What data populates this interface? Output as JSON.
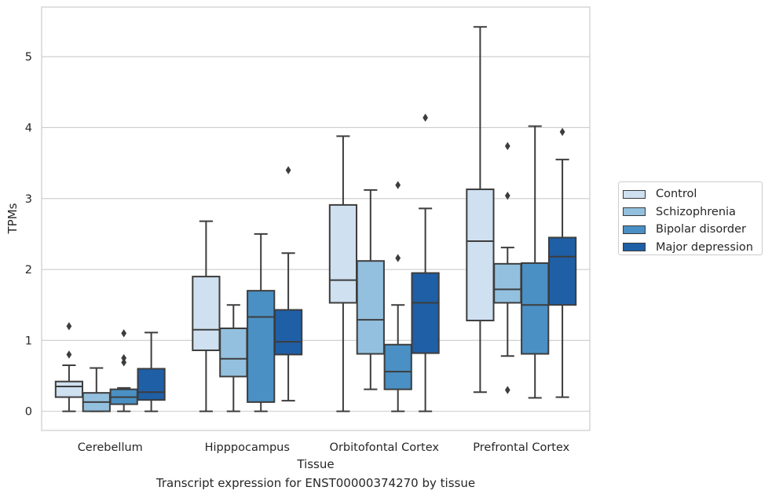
{
  "caption": "Transcript expression for ENST00000374270 by tissue",
  "chart_data": {
    "type": "box",
    "title": "",
    "xlabel": "Tissue",
    "ylabel": "TPMs",
    "ylim": [
      -0.27,
      5.7
    ],
    "yticks": [
      0,
      1,
      2,
      3,
      4,
      5
    ],
    "grid": "horizontal",
    "legend_position": "right",
    "categories": [
      "Cerebellum",
      "Hipppocampus",
      "Orbitofontal Cortex",
      "Prefrontal Cortex"
    ],
    "series": [
      {
        "name": "Control",
        "color": "#cfe0f0",
        "boxes": [
          {
            "whisker_low": 0.0,
            "q1": 0.2,
            "median": 0.35,
            "q3": 0.42,
            "whisker_high": 0.65,
            "outliers": [
              0.8,
              1.2
            ]
          },
          {
            "whisker_low": 0.0,
            "q1": 0.86,
            "median": 1.15,
            "q3": 1.9,
            "whisker_high": 2.68,
            "outliers": []
          },
          {
            "whisker_low": 0.0,
            "q1": 1.53,
            "median": 1.85,
            "q3": 2.91,
            "whisker_high": 3.88,
            "outliers": []
          },
          {
            "whisker_low": 0.27,
            "q1": 1.28,
            "median": 2.4,
            "q3": 3.13,
            "whisker_high": 5.42,
            "outliers": []
          }
        ]
      },
      {
        "name": "Schizophrenia",
        "color": "#93c0de",
        "boxes": [
          {
            "whisker_low": 0.0,
            "q1": 0.0,
            "median": 0.13,
            "q3": 0.26,
            "whisker_high": 0.61,
            "outliers": []
          },
          {
            "whisker_low": 0.0,
            "q1": 0.49,
            "median": 0.74,
            "q3": 1.17,
            "whisker_high": 1.5,
            "outliers": []
          },
          {
            "whisker_low": 0.31,
            "q1": 0.81,
            "median": 1.29,
            "q3": 2.12,
            "whisker_high": 3.12,
            "outliers": []
          },
          {
            "whisker_low": 0.78,
            "q1": 1.53,
            "median": 1.72,
            "q3": 2.08,
            "whisker_high": 2.31,
            "outliers": [
              0.3,
              3.04,
              3.74
            ]
          }
        ]
      },
      {
        "name": "Bipolar disorder",
        "color": "#4a90c4",
        "boxes": [
          {
            "whisker_low": 0.0,
            "q1": 0.1,
            "median": 0.2,
            "q3": 0.31,
            "whisker_high": 0.33,
            "outliers": [
              0.69,
              0.75,
              1.1
            ]
          },
          {
            "whisker_low": 0.0,
            "q1": 0.13,
            "median": 1.33,
            "q3": 1.7,
            "whisker_high": 2.5,
            "outliers": []
          },
          {
            "whisker_low": 0.0,
            "q1": 0.31,
            "median": 0.56,
            "q3": 0.94,
            "whisker_high": 1.5,
            "outliers": [
              2.16,
              3.19
            ]
          },
          {
            "whisker_low": 0.19,
            "q1": 0.81,
            "median": 1.5,
            "q3": 2.09,
            "whisker_high": 4.02,
            "outliers": []
          }
        ]
      },
      {
        "name": "Major depression",
        "color": "#1f5fa6",
        "boxes": [
          {
            "whisker_low": 0.0,
            "q1": 0.16,
            "median": 0.27,
            "q3": 0.6,
            "whisker_high": 1.11,
            "outliers": []
          },
          {
            "whisker_low": 0.15,
            "q1": 0.8,
            "median": 0.98,
            "q3": 1.43,
            "whisker_high": 2.23,
            "outliers": [
              3.4
            ]
          },
          {
            "whisker_low": 0.0,
            "q1": 0.82,
            "median": 1.53,
            "q3": 1.95,
            "whisker_high": 2.86,
            "outliers": [
              4.14
            ]
          },
          {
            "whisker_low": 0.2,
            "q1": 1.5,
            "median": 2.18,
            "q3": 2.45,
            "whisker_high": 3.55,
            "outliers": [
              3.94
            ]
          }
        ]
      }
    ]
  }
}
